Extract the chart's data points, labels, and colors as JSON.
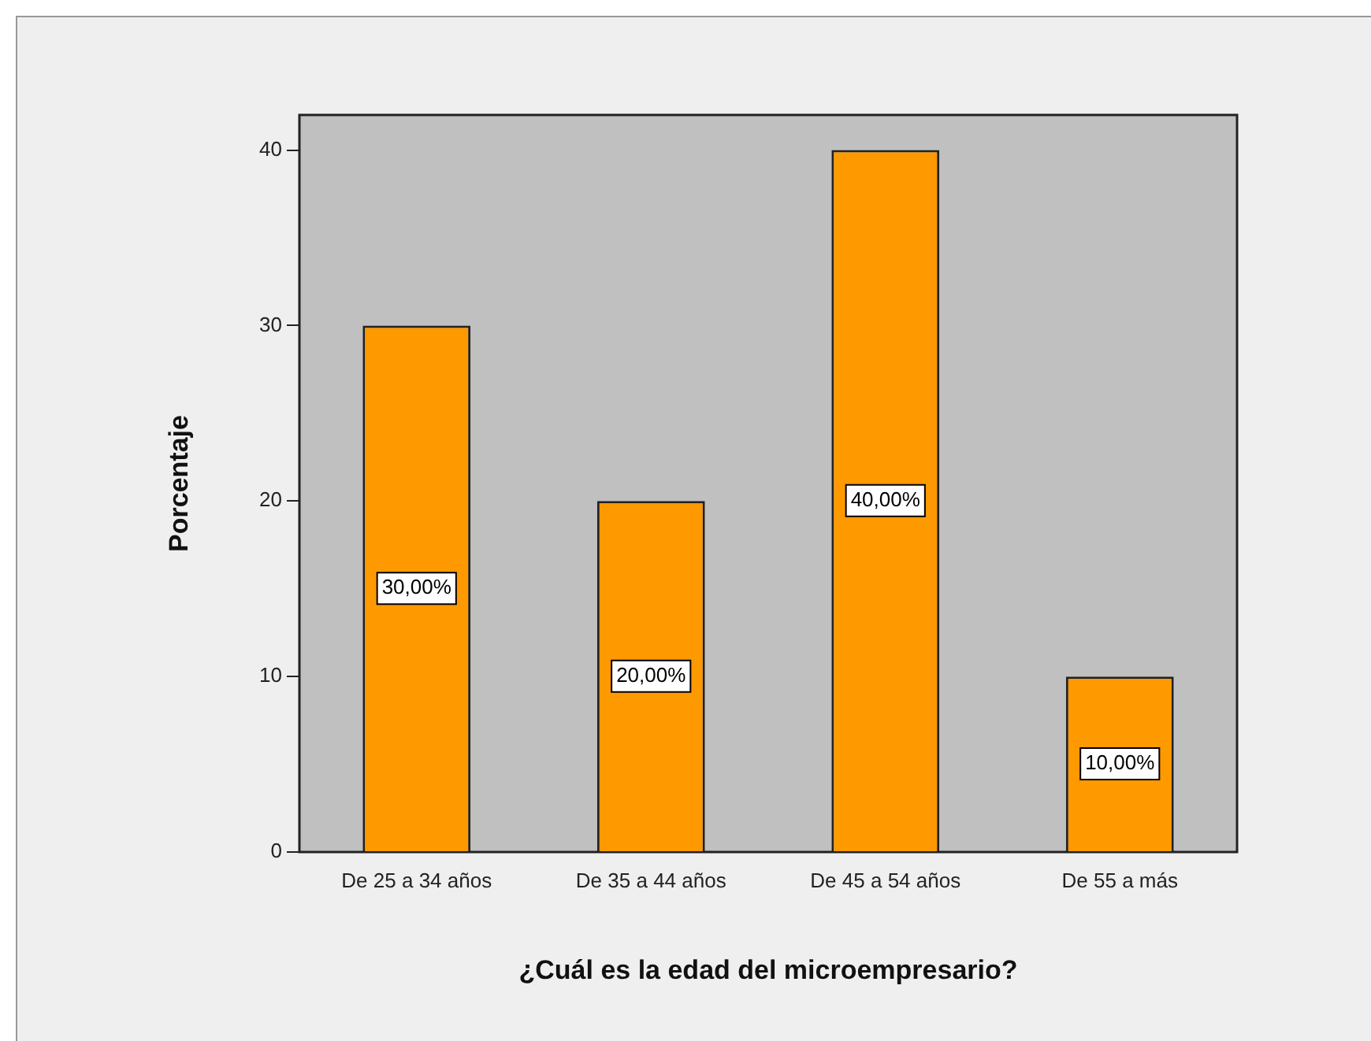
{
  "chart_data": {
    "type": "bar",
    "xlabel": "¿Cuál es la edad del microempresario?",
    "ylabel": "Porcentaje",
    "categories": [
      "De 25 a 34 años",
      "De 35 a 44 años",
      "De 45 a 54 años",
      "De 55 a más"
    ],
    "values": [
      30,
      20,
      40,
      10
    ],
    "value_labels": [
      "30,00%",
      "20,00%",
      "40,00%",
      "10,00%"
    ],
    "color": "#ff9900",
    "ylim": [
      0,
      42
    ],
    "yticks": [
      0,
      10,
      20,
      30,
      40
    ],
    "grid": false,
    "legend": false
  }
}
